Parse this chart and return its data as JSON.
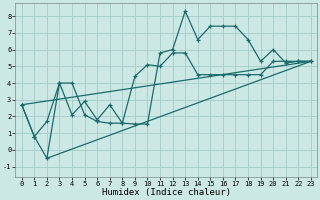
{
  "background_color": "#cce8e5",
  "grid_color": "#aacfcc",
  "line_color": "#1a6b6b",
  "xlabel": "Humidex (Indice chaleur)",
  "xlim": [
    -0.5,
    23.5
  ],
  "ylim": [
    -1.6,
    8.8
  ],
  "xticks": [
    0,
    1,
    2,
    3,
    4,
    5,
    6,
    7,
    8,
    9,
    10,
    11,
    12,
    13,
    14,
    15,
    16,
    17,
    18,
    19,
    20,
    21,
    22,
    23
  ],
  "yticks": [
    -1,
    0,
    1,
    2,
    3,
    4,
    5,
    6,
    7,
    8
  ],
  "series1_x": [
    0,
    1,
    2,
    3,
    4,
    5,
    6,
    7,
    8,
    9,
    10,
    11,
    12,
    13,
    14,
    15,
    16,
    17,
    18,
    19,
    20,
    21,
    22,
    23
  ],
  "series1_y": [
    2.7,
    0.8,
    1.7,
    4.0,
    2.1,
    2.9,
    1.8,
    2.7,
    1.6,
    1.55,
    1.55,
    5.8,
    6.0,
    8.3,
    6.6,
    7.4,
    7.4,
    7.4,
    6.6,
    5.3,
    6.0,
    5.2,
    5.3,
    5.3
  ],
  "series2_x": [
    0,
    1,
    2,
    3,
    4,
    5,
    6,
    7,
    8,
    9,
    10,
    11,
    12,
    13,
    14,
    15,
    16,
    17,
    18,
    19,
    20,
    21,
    22,
    23
  ],
  "series2_y": [
    2.7,
    0.8,
    -0.5,
    4.0,
    4.0,
    2.1,
    1.7,
    1.6,
    1.6,
    4.4,
    5.1,
    5.0,
    5.8,
    5.8,
    4.5,
    4.5,
    4.5,
    4.5,
    4.5,
    4.5,
    5.3,
    5.3,
    5.3,
    5.3
  ],
  "series3_x": [
    2,
    23
  ],
  "series3_y": [
    -0.5,
    5.3
  ],
  "series4_x": [
    0,
    23
  ],
  "series4_y": [
    2.7,
    5.3
  ]
}
